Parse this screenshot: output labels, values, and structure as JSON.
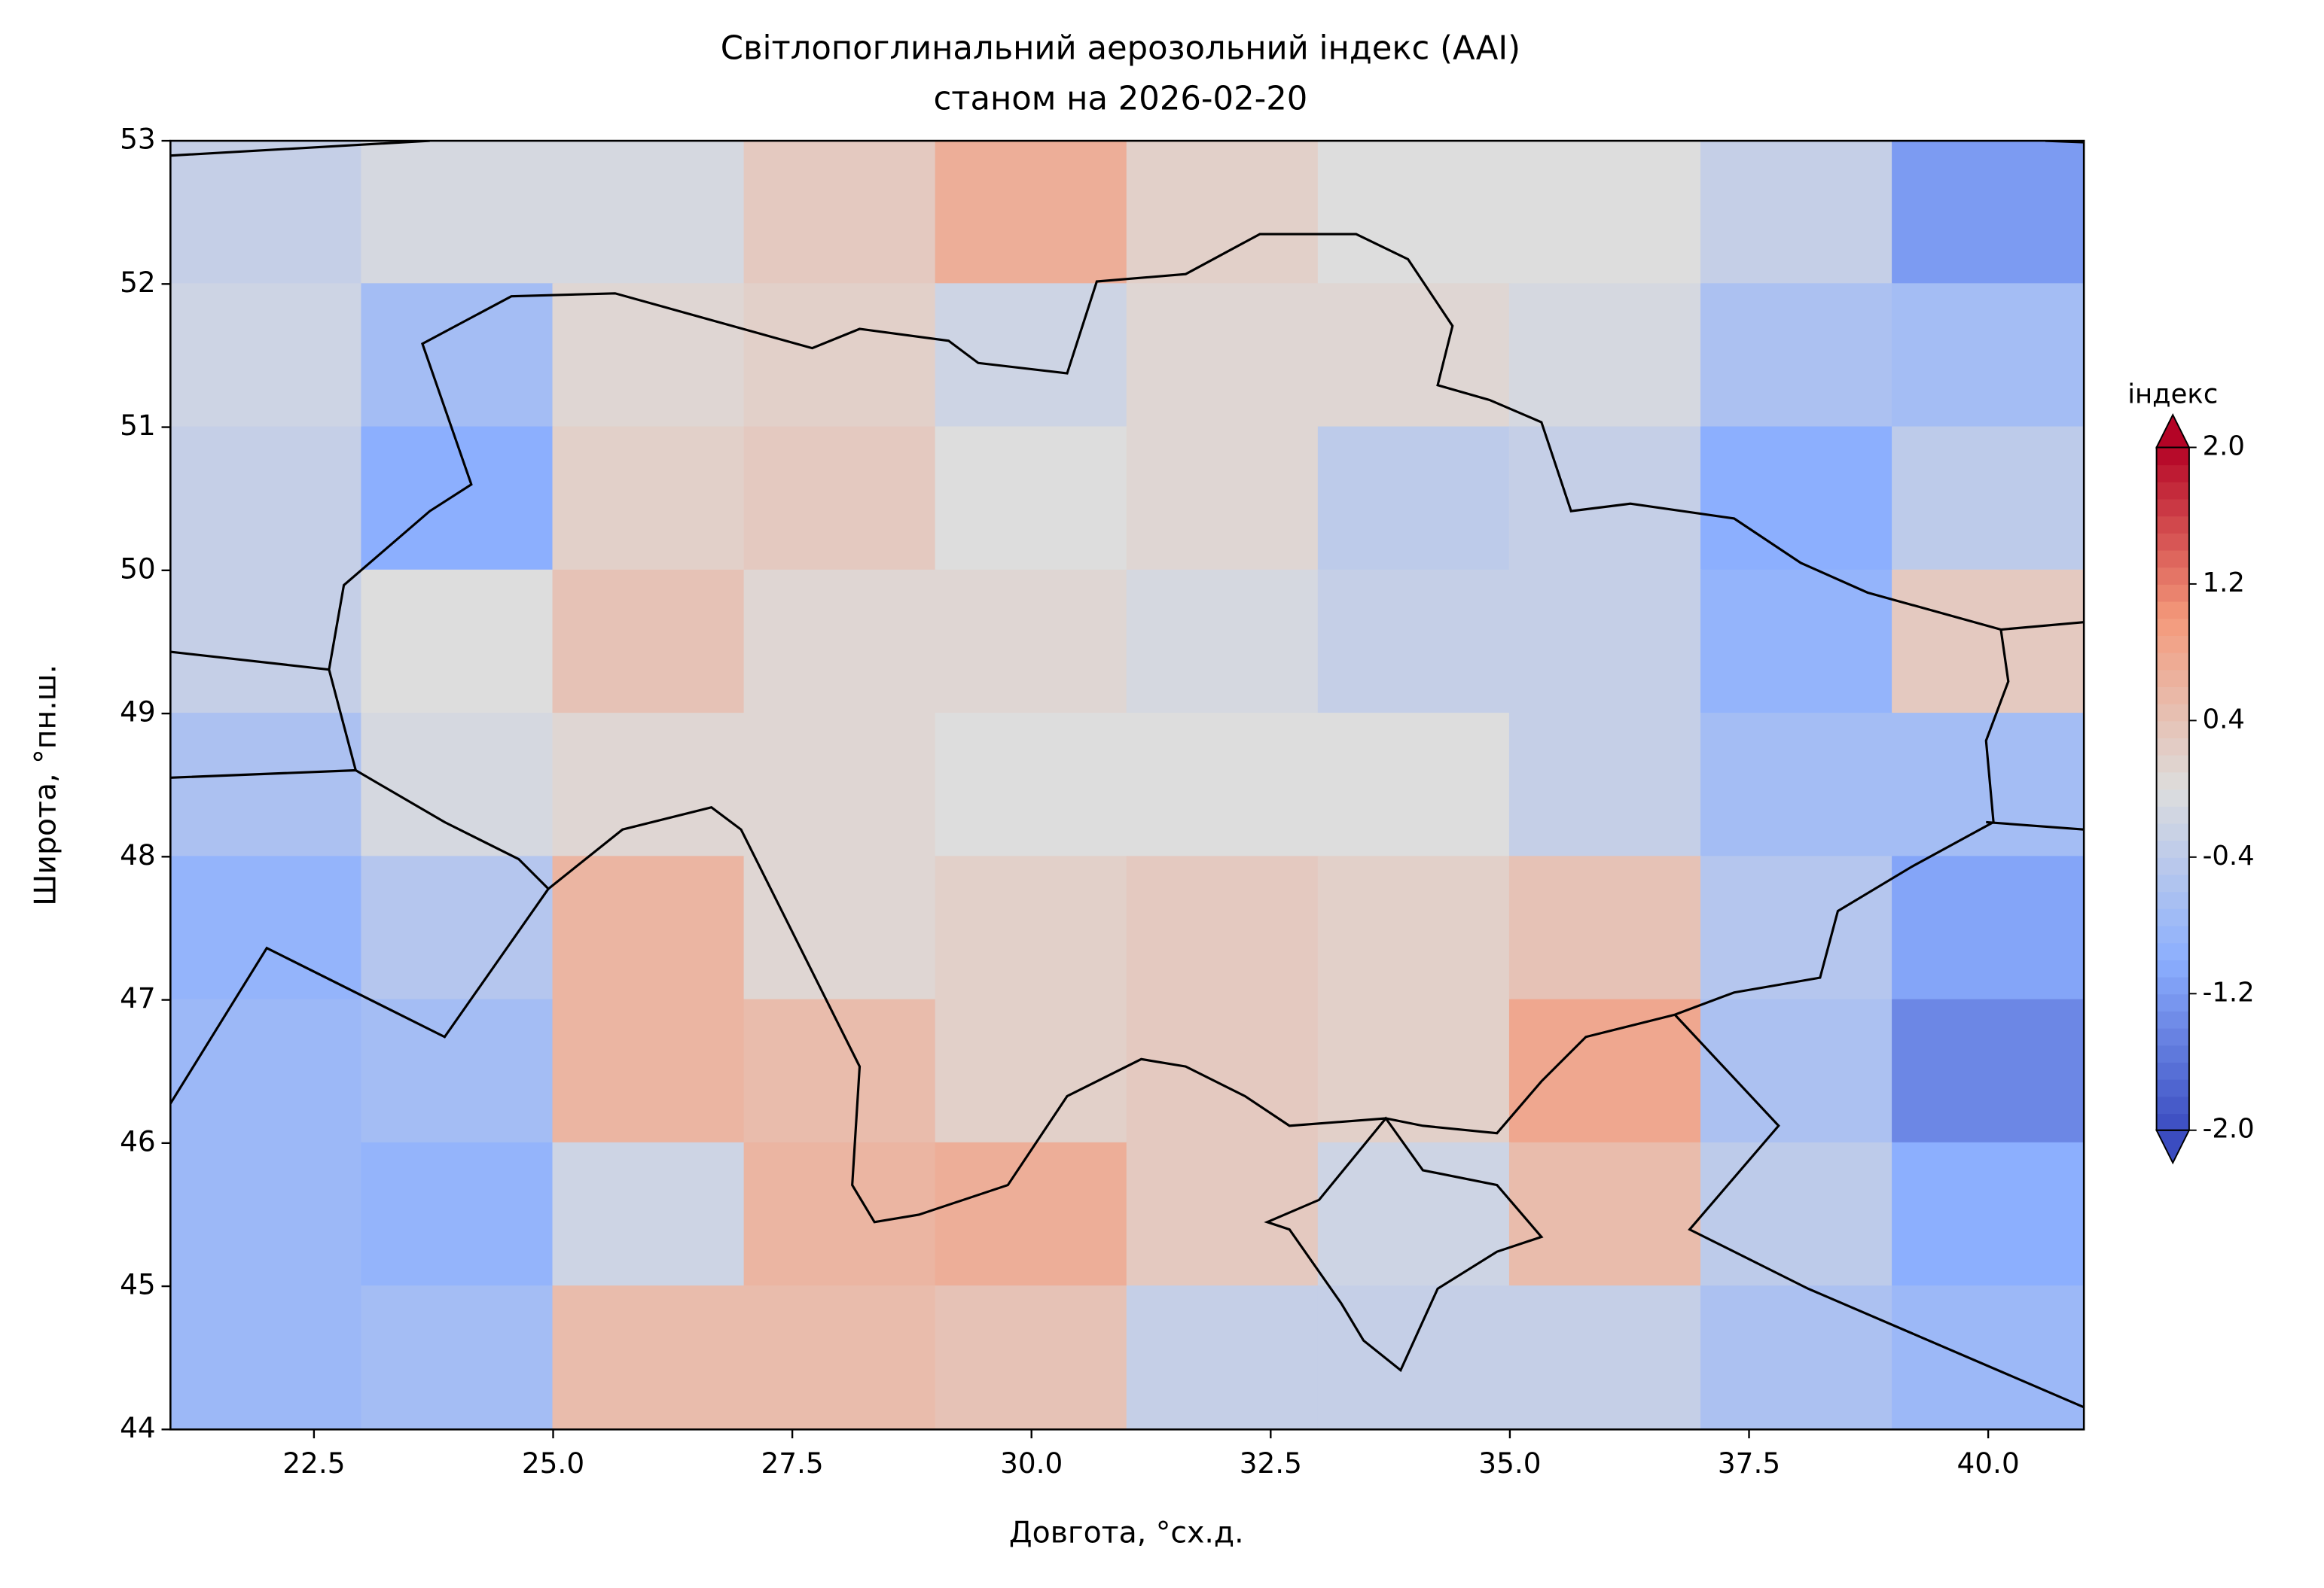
{
  "chart_data": {
    "type": "heatmap",
    "title": "Світлопоглинальний аерозольний індекс (AAI)",
    "subtitle": "станом на 2026-02-20",
    "x_label": "Довгота, °сх.д.",
    "y_label": "Широта, °пн.ш.",
    "xlim": [
      21,
      41
    ],
    "ylim": [
      44,
      53
    ],
    "xticks": [
      22.5,
      {
        "value": 25,
        "label": "25.0"
      },
      27.5,
      {
        "value": 30,
        "label": "30.0"
      },
      32.5,
      {
        "value": 35,
        "label": "35.0"
      },
      37.5,
      {
        "value": 40,
        "label": "40.0"
      }
    ],
    "yticks": [
      44,
      45,
      46,
      47,
      48,
      49,
      50,
      51,
      52,
      53
    ],
    "lon": [
      22,
      24,
      26,
      28,
      30,
      32,
      34,
      36,
      38,
      40
    ],
    "lat": [
      52.5,
      51.5,
      50.5,
      49.5,
      48.5,
      47.5,
      46.5,
      45.5,
      44.5
    ],
    "z": [
      [
        -0.3,
        -0.1,
        -0.1,
        0.3,
        0.7,
        0.2,
        0,
        0,
        -0.3,
        -1.2
      ],
      [
        -0.2,
        -0.7,
        0.1,
        0.2,
        -0.2,
        0.1,
        0.1,
        -0.1,
        -0.6,
        -0.7
      ],
      [
        -0.3,
        -1.0,
        0.2,
        0.3,
        0,
        0.1,
        -0.4,
        -0.3,
        -1.0,
        -0.4
      ],
      [
        -0.3,
        0,
        0.4,
        0.1,
        0.1,
        -0.1,
        -0.3,
        -0.3,
        -0.9,
        0.3
      ],
      [
        -0.6,
        -0.1,
        0.1,
        0.1,
        0,
        0,
        0,
        -0.3,
        -0.7,
        -0.7
      ],
      [
        -0.9,
        -0.5,
        0.6,
        0.1,
        0.2,
        0.3,
        0.2,
        0.4,
        -0.5,
        -1.1
      ],
      [
        -0.8,
        -0.7,
        0.6,
        0.5,
        0.2,
        0.3,
        0.2,
        0.8,
        -0.6,
        -1.4
      ],
      [
        -0.8,
        -0.9,
        -0.2,
        0.6,
        0.7,
        0.3,
        -0.2,
        0.5,
        -0.4,
        -1.0
      ],
      [
        -0.8,
        -0.7,
        0.5,
        0.5,
        0.4,
        -0.3,
        -0.3,
        -0.3,
        -0.6,
        -0.8
      ]
    ],
    "colormap": "coolwarm",
    "clim": [
      -2,
      2
    ],
    "colorbar_label": "індекс",
    "cticks": [
      {
        "value": -2,
        "label": "-2.0"
      },
      -1.2,
      -0.4,
      0.4,
      1.2,
      {
        "value": 2,
        "label": "2.0"
      }
    ]
  }
}
